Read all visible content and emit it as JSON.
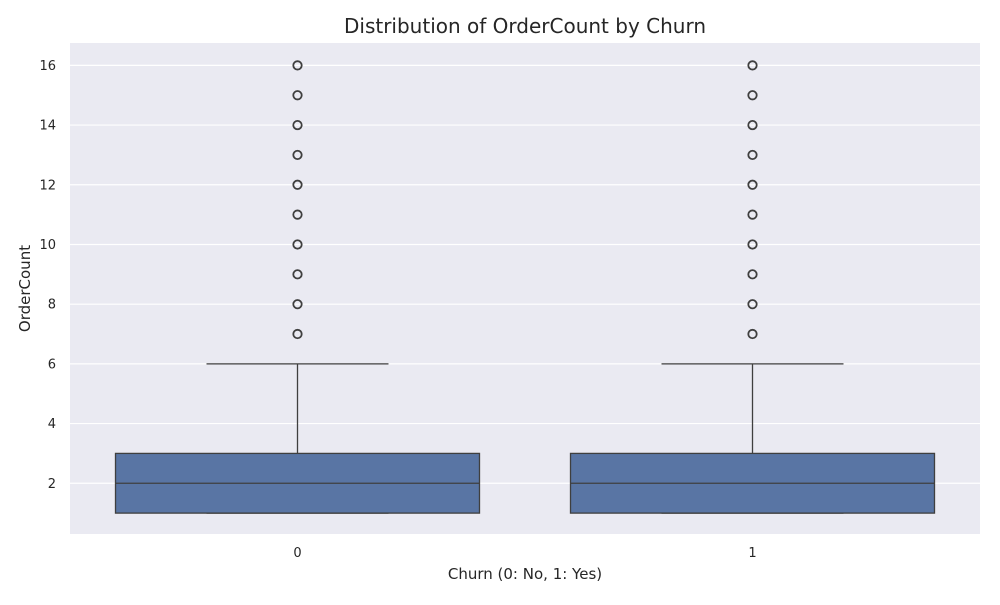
{
  "chart_data": {
    "type": "box",
    "title": "Distribution of OrderCount by Churn",
    "xlabel": "Churn (0: No, 1: Yes)",
    "ylabel": "OrderCount",
    "categories": [
      "0",
      "1"
    ],
    "ylim": [
      0.3,
      16.75
    ],
    "yticks": [
      2,
      4,
      6,
      8,
      10,
      12,
      14,
      16
    ],
    "grid": true,
    "colors": {
      "background": "#eaeaf2",
      "grid": "#ffffff",
      "box_fill": "#5975a4",
      "line": "#3f3f3f"
    },
    "boxes": [
      {
        "category": "0",
        "min": 1,
        "q1": 1,
        "median": 2,
        "q3": 3,
        "max": 6,
        "outliers": [
          7,
          8,
          9,
          10,
          11,
          12,
          13,
          14,
          15,
          16
        ]
      },
      {
        "category": "1",
        "min": 1,
        "q1": 1,
        "median": 2,
        "q3": 3,
        "max": 6,
        "outliers": [
          7,
          8,
          9,
          10,
          11,
          12,
          13,
          14,
          15,
          16
        ]
      }
    ]
  }
}
